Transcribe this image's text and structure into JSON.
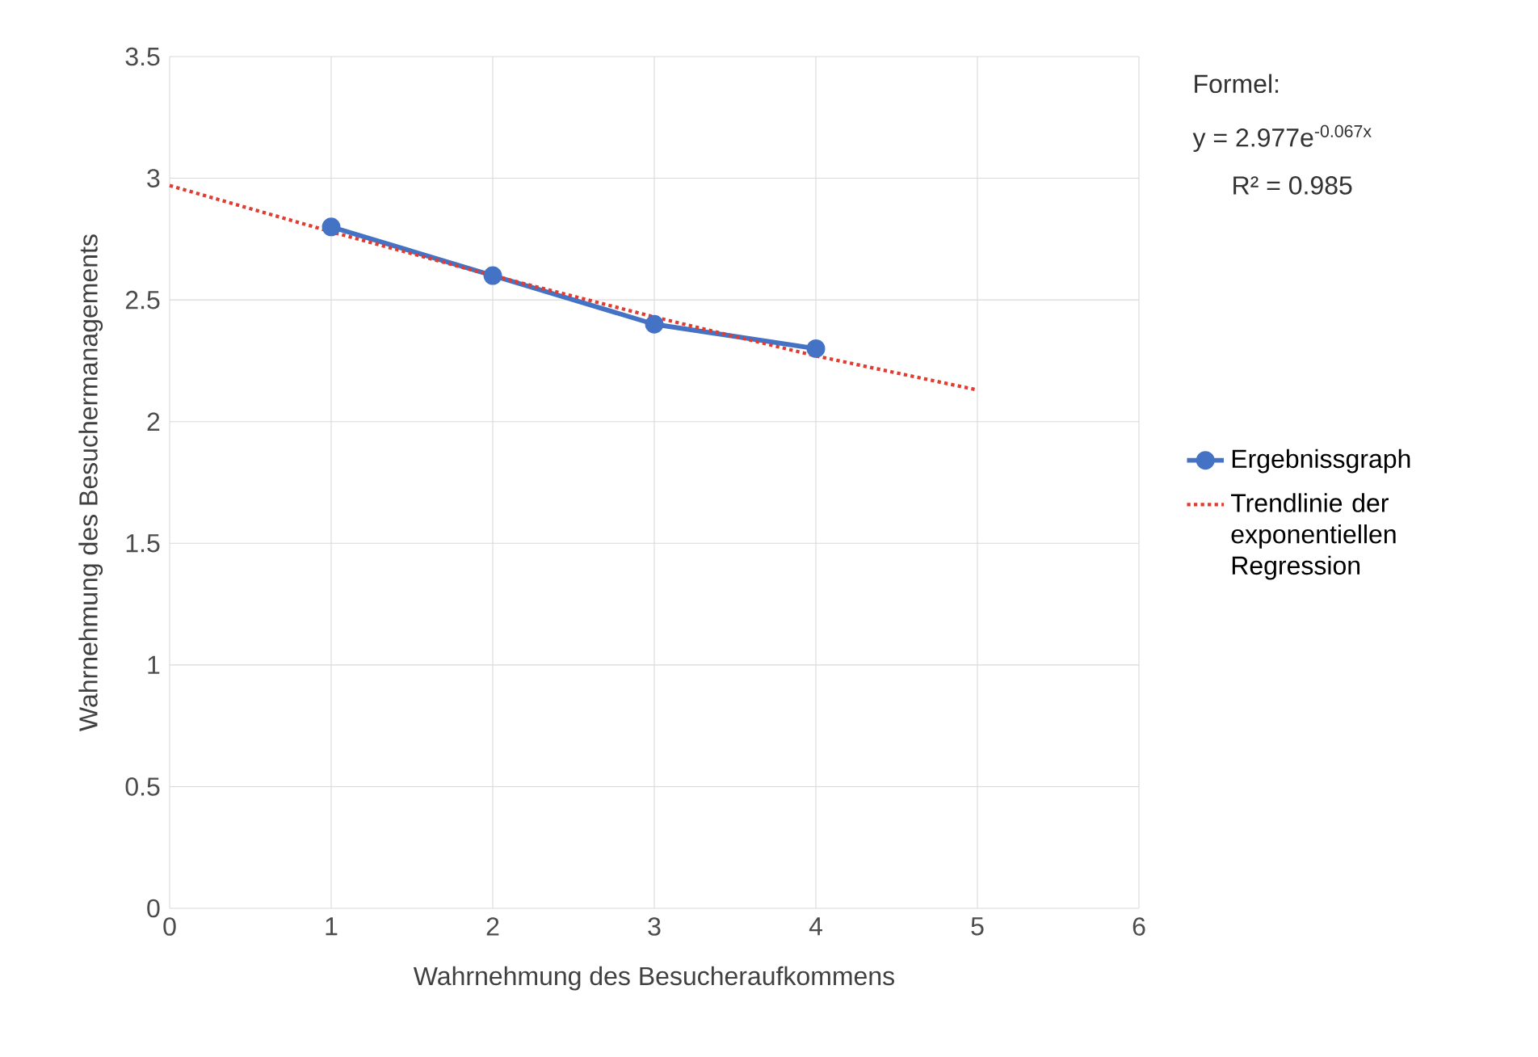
{
  "chart_data": {
    "type": "line",
    "xlabel": "Wahrnehmung des Besucheraufkommens",
    "ylabel": "Wahrnehmung des Besuchermanagements",
    "xlim": [
      0,
      6
    ],
    "xticks": [
      0,
      1,
      2,
      3,
      4,
      5,
      6
    ],
    "ylim": [
      0,
      3.5
    ],
    "yticks": [
      0,
      0.5,
      1,
      1.5,
      2,
      2.5,
      3,
      3.5
    ],
    "grid": true,
    "legend": "right",
    "series": [
      {
        "name": "Ergebnissgraph",
        "color": "#4472c4",
        "x": [
          1,
          2,
          3,
          4
        ],
        "values": [
          2.8,
          2.6,
          2.4,
          2.3
        ],
        "marker": "circle",
        "line_style": "solid"
      },
      {
        "name": "Trendlinie der exponentiellen Regression",
        "color": "#e03c31",
        "x": [
          0,
          1,
          2,
          3,
          4,
          5
        ],
        "values": [
          2.97,
          2.78,
          2.6,
          2.43,
          2.27,
          2.13
        ],
        "marker": "none",
        "line_style": "dotted"
      }
    ],
    "annotations": [
      "Formel:",
      "y = 2.977e$^{-0.067x}$",
      "R² = 0.985"
    ]
  }
}
